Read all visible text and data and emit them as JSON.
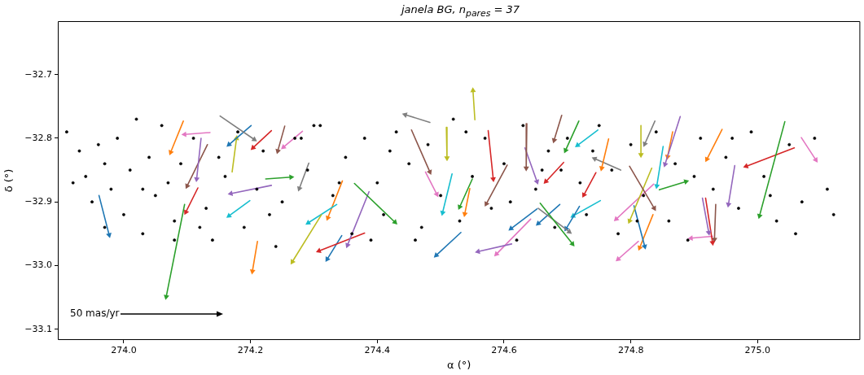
{
  "chart_data": {
    "type": "line",
    "title": "janela BG, n$_{pares}$ = 37",
    "xlabel": "α (°)",
    "ylabel": "δ (°)",
    "xlim": [
      273.896,
      275.162
    ],
    "ylim": [
      -33.117,
      -32.616
    ],
    "xticks": [
      {
        "value": 274,
        "label": "274.0"
      },
      {
        "value": 274.2,
        "label": "274.2"
      },
      {
        "value": 274.4,
        "label": "274.4"
      },
      {
        "value": 274.6,
        "label": "274.6"
      },
      {
        "value": 274.8,
        "label": "274.8"
      },
      {
        "value": 275,
        "label": "275.0"
      }
    ],
    "yticks": [
      {
        "value": -32.7,
        "label": "−32.7"
      },
      {
        "value": -32.8,
        "label": "−32.8"
      },
      {
        "value": -32.9,
        "label": "−32.9"
      },
      {
        "value": -33.0,
        "label": "−33.0"
      },
      {
        "value": -33.1,
        "label": "−33.1"
      }
    ],
    "grid": false,
    "legend": false,
    "annotations": [
      "50 mas/yr"
    ],
    "series": [
      {
        "type": "scatter",
        "marker": "circle",
        "color": "#000000",
        "x": [
          273.91,
          273.93,
          273.94,
          273.95,
          273.96,
          273.97,
          273.98,
          273.99,
          274.0,
          274.01,
          274.02,
          274.03,
          274.04,
          274.05,
          274.06,
          274.07,
          274.08,
          274.09,
          274.11,
          274.13,
          274.14,
          274.16,
          274.18,
          274.19,
          274.21,
          274.22,
          274.24,
          274.25,
          274.27,
          274.29,
          274.3,
          274.31,
          274.33,
          274.35,
          274.36,
          274.38,
          274.4,
          274.41,
          274.43,
          274.45,
          274.46,
          274.48,
          274.5,
          274.52,
          274.53,
          274.55,
          274.57,
          274.58,
          274.6,
          274.62,
          274.63,
          274.65,
          274.67,
          274.68,
          274.7,
          274.72,
          274.73,
          274.75,
          274.77,
          274.78,
          274.8,
          274.82,
          274.84,
          274.86,
          274.87,
          274.89,
          274.91,
          274.93,
          274.95,
          274.97,
          274.99,
          275.01,
          275.03,
          275.05,
          275.07,
          275.09,
          275.11,
          275.12,
          273.92,
          273.97,
          274.03,
          274.08,
          274.15,
          274.23,
          274.28,
          274.34,
          274.42,
          274.47,
          274.54,
          274.61,
          274.66,
          274.74,
          274.81,
          274.9,
          274.96,
          275.02,
          275.06,
          274.12,
          274.39,
          274.69
        ],
        "values": [
          -32.79,
          -32.82,
          -32.86,
          -32.9,
          -32.81,
          -32.94,
          -32.88,
          -32.8,
          -32.92,
          -32.85,
          -32.77,
          -32.95,
          -32.83,
          -32.89,
          -32.78,
          -32.87,
          -32.93,
          -32.84,
          -32.8,
          -32.91,
          -32.96,
          -32.86,
          -32.79,
          -32.94,
          -32.88,
          -32.82,
          -32.97,
          -32.9,
          -32.8,
          -32.85,
          -32.78,
          -32.78,
          -32.89,
          -32.83,
          -32.95,
          -32.8,
          -32.87,
          -32.92,
          -32.79,
          -32.84,
          -32.96,
          -32.81,
          -32.89,
          -32.77,
          -32.93,
          -32.86,
          -32.8,
          -32.91,
          -32.84,
          -32.96,
          -32.78,
          -32.88,
          -32.82,
          -32.94,
          -32.8,
          -32.87,
          -32.92,
          -32.78,
          -32.85,
          -32.95,
          -32.81,
          -32.89,
          -32.79,
          -32.93,
          -32.84,
          -32.96,
          -32.8,
          -32.88,
          -32.83,
          -32.91,
          -32.79,
          -32.86,
          -32.93,
          -32.81,
          -32.9,
          -32.8,
          -32.88,
          -32.92,
          -32.87,
          -32.84,
          -32.88,
          -32.96,
          -32.83,
          -32.92,
          -32.8,
          -32.87,
          -32.82,
          -32.94,
          -32.79,
          -32.9,
          -32.85,
          -32.82,
          -32.93,
          -32.86,
          -32.8,
          -32.89,
          -32.95,
          -32.94,
          -32.96,
          -32.85
        ]
      },
      {
        "marker": "triangle",
        "color": "#1f77b4",
        "x": [
          273.961,
          273.977
        ],
        "values": [
          -32.89,
          -32.952
        ]
      },
      {
        "type": "line",
        "marker": "triangle",
        "color": "#ff7f0e",
        "x": [
          274.094,
          274.074
        ],
        "values": [
          -32.773,
          -32.822
        ]
      },
      {
        "type": "line",
        "marker": "triangle",
        "color": "#e377c2",
        "x": [
          274.136,
          274.096
        ],
        "values": [
          -32.791,
          -32.794
        ]
      },
      {
        "type": "line",
        "marker": "triangle",
        "color": "#9467bd",
        "x": [
          274.122,
          274.115
        ],
        "values": [
          -32.8,
          -32.864
        ]
      },
      {
        "type": "line",
        "marker": "triangle",
        "color": "#8c564b",
        "x": [
          274.132,
          274.1
        ],
        "values": [
          -32.81,
          -32.875
        ]
      },
      {
        "type": "line",
        "marker": "triangle",
        "color": "#7f7f7f",
        "x": [
          274.152,
          274.206
        ],
        "values": [
          -32.765,
          -32.802
        ]
      },
      {
        "type": "line",
        "marker": "triangle",
        "color": "#1f77b4",
        "x": [
          274.201,
          274.166
        ],
        "values": [
          -32.78,
          -32.81
        ]
      },
      {
        "type": "line",
        "marker": "triangle",
        "color": "#bcbd22",
        "x": [
          274.171,
          274.178
        ],
        "values": [
          -32.853,
          -32.8
        ]
      },
      {
        "type": "line",
        "marker": "triangle",
        "color": "#d62728",
        "x": [
          274.233,
          274.204
        ],
        "values": [
          -32.788,
          -32.815
        ]
      },
      {
        "type": "line",
        "marker": "triangle",
        "color": "#8c564b",
        "x": [
          274.254,
          274.243
        ],
        "values": [
          -32.781,
          -32.82
        ]
      },
      {
        "type": "line",
        "marker": "triangle",
        "color": "#e377c2",
        "x": [
          274.282,
          274.252
        ],
        "values": [
          -32.789,
          -32.814
        ]
      },
      {
        "type": "line",
        "marker": "triangle",
        "color": "#7f7f7f",
        "x": [
          274.292,
          274.277
        ],
        "values": [
          -32.839,
          -32.879
        ]
      },
      {
        "type": "line",
        "marker": "triangle",
        "color": "#2ca02c",
        "x": [
          274.224,
          274.264
        ],
        "values": [
          -32.864,
          -32.861
        ]
      },
      {
        "type": "line",
        "marker": "triangle",
        "color": "#9467bd",
        "x": [
          274.233,
          274.169
        ],
        "values": [
          -32.874,
          -32.887
        ]
      },
      {
        "type": "line",
        "marker": "triangle",
        "color": "#d62728",
        "x": [
          274.117,
          274.098
        ],
        "values": [
          -32.878,
          -32.916
        ]
      },
      {
        "type": "line",
        "marker": "triangle",
        "color": "#2ca02c",
        "x": [
          274.096,
          274.067
        ],
        "values": [
          -32.904,
          -33.049
        ]
      },
      {
        "type": "line",
        "marker": "triangle",
        "color": "#17becf",
        "x": [
          274.199,
          274.166
        ],
        "values": [
          -32.898,
          -32.922
        ]
      },
      {
        "type": "line",
        "marker": "triangle",
        "color": "#ff7f0e",
        "x": [
          274.211,
          274.203
        ],
        "values": [
          -32.962,
          -33.009
        ]
      },
      {
        "type": "line",
        "marker": "triangle",
        "color": "#bcbd22",
        "x": [
          274.312,
          274.266
        ],
        "values": [
          -32.92,
          -32.994
        ]
      },
      {
        "type": "line",
        "marker": "triangle",
        "color": "#17becf",
        "x": [
          274.336,
          274.291
        ],
        "values": [
          -32.904,
          -32.933
        ]
      },
      {
        "type": "line",
        "marker": "triangle",
        "color": "#ff7f0e",
        "x": [
          274.345,
          274.322
        ],
        "values": [
          -32.867,
          -32.925
        ]
      },
      {
        "type": "line",
        "marker": "triangle",
        "color": "#2ca02c",
        "x": [
          274.364,
          274.428
        ],
        "values": [
          -32.871,
          -32.932
        ]
      },
      {
        "type": "line",
        "marker": "triangle",
        "color": "#9467bd",
        "x": [
          274.387,
          274.353
        ],
        "values": [
          -32.884,
          -32.968
        ]
      },
      {
        "type": "line",
        "marker": "triangle",
        "color": "#d62728",
        "x": [
          274.38,
          274.308
        ],
        "values": [
          -32.949,
          -32.977
        ]
      },
      {
        "type": "line",
        "marker": "triangle",
        "color": "#1f77b4",
        "x": [
          274.344,
          274.321
        ],
        "values": [
          -32.953,
          -32.99
        ]
      },
      {
        "type": "line",
        "marker": "triangle",
        "color": "#7f7f7f",
        "x": [
          274.483,
          274.444
        ],
        "values": [
          -32.775,
          -32.763
        ]
      },
      {
        "type": "line",
        "marker": "triangle",
        "color": "#8c564b",
        "x": [
          274.454,
          274.483
        ],
        "values": [
          -32.787,
          -32.853
        ]
      },
      {
        "type": "line",
        "marker": "triangle",
        "color": "#bcbd22",
        "x": [
          274.509,
          274.51
        ],
        "values": [
          -32.783,
          -32.831
        ]
      },
      {
        "type": "line",
        "marker": "triangle",
        "color": "#bcbd22",
        "x": [
          274.554,
          274.551
        ],
        "values": [
          -32.771,
          -32.725
        ]
      },
      {
        "type": "line",
        "marker": "triangle",
        "color": "#e377c2",
        "x": [
          274.476,
          274.494
        ],
        "values": [
          -32.853,
          -32.888
        ]
      },
      {
        "type": "line",
        "marker": "triangle",
        "color": "#17becf",
        "x": [
          274.518,
          274.503
        ],
        "values": [
          -32.856,
          -32.917
        ]
      },
      {
        "type": "line",
        "marker": "triangle",
        "color": "#2ca02c",
        "x": [
          274.55,
          274.53
        ],
        "values": [
          -32.864,
          -32.908
        ]
      },
      {
        "type": "line",
        "marker": "triangle",
        "color": "#ff7f0e",
        "x": [
          274.546,
          274.538
        ],
        "values": [
          -32.879,
          -32.919
        ]
      },
      {
        "type": "line",
        "marker": "triangle",
        "color": "#1f77b4",
        "x": [
          274.532,
          274.493
        ],
        "values": [
          -32.948,
          -32.984
        ]
      },
      {
        "type": "line",
        "marker": "triangle",
        "color": "#d62728",
        "x": [
          274.575,
          274.583
        ],
        "values": [
          -32.788,
          -32.864
        ]
      },
      {
        "type": "line",
        "marker": "triangle",
        "color": "#8c564b",
        "x": [
          274.605,
          274.572
        ],
        "values": [
          -32.842,
          -32.903
        ]
      },
      {
        "type": "line",
        "marker": "triangle",
        "color": "#9467bd",
        "x": [
          274.612,
          274.559
        ],
        "values": [
          -32.966,
          -32.978
        ]
      },
      {
        "type": "line",
        "marker": "triangle",
        "color": "#e377c2",
        "x": [
          274.642,
          274.588
        ],
        "values": [
          -32.927,
          -32.982
        ]
      },
      {
        "type": "line",
        "marker": "triangle",
        "color": "#8c564b",
        "x": [
          274.636,
          274.635
        ],
        "values": [
          -32.777,
          -32.847
        ]
      },
      {
        "type": "line",
        "marker": "triangle",
        "color": "#9467bd",
        "x": [
          274.633,
          274.652
        ],
        "values": [
          -32.815,
          -32.868
        ]
      },
      {
        "type": "line",
        "marker": "triangle",
        "color": "#1f77b4",
        "x": [
          274.652,
          274.611
        ],
        "values": [
          -32.911,
          -32.942
        ]
      },
      {
        "type": "line",
        "marker": "triangle",
        "color": "#8c564b",
        "x": [
          274.691,
          274.679
        ],
        "values": [
          -32.764,
          -32.803
        ]
      },
      {
        "type": "line",
        "marker": "triangle",
        "color": "#2ca02c",
        "x": [
          274.718,
          274.697
        ],
        "values": [
          -32.773,
          -32.819
        ]
      },
      {
        "type": "line",
        "marker": "triangle",
        "color": "#17becf",
        "x": [
          274.748,
          274.716
        ],
        "values": [
          -32.787,
          -32.811
        ]
      },
      {
        "type": "line",
        "marker": "triangle",
        "color": "#d62728",
        "x": [
          274.694,
          274.666
        ],
        "values": [
          -32.838,
          -32.868
        ]
      },
      {
        "type": "line",
        "marker": "triangle",
        "color": "#2ca02c",
        "x": [
          274.657,
          274.708
        ],
        "values": [
          -32.902,
          -32.966
        ]
      },
      {
        "type": "line",
        "marker": "triangle",
        "color": "#7f7f7f",
        "x": [
          274.654,
          274.703
        ],
        "values": [
          -32.91,
          -32.947
        ]
      },
      {
        "type": "line",
        "marker": "triangle",
        "color": "#1f77b4",
        "x": [
          274.688,
          274.654
        ],
        "values": [
          -32.904,
          -32.934
        ]
      },
      {
        "type": "line",
        "marker": "triangle",
        "color": "#1f77b4",
        "x": [
          274.719,
          274.698
        ],
        "values": [
          -32.907,
          -32.942
        ]
      },
      {
        "type": "line",
        "marker": "triangle",
        "color": "#d62728",
        "x": [
          274.745,
          274.726
        ],
        "values": [
          -32.854,
          -32.889
        ]
      },
      {
        "type": "line",
        "marker": "triangle",
        "color": "#17becf",
        "x": [
          274.752,
          274.709
        ],
        "values": [
          -32.898,
          -32.922
        ]
      },
      {
        "type": "line",
        "marker": "triangle",
        "color": "#ff7f0e",
        "x": [
          274.765,
          274.754
        ],
        "values": [
          -32.801,
          -32.847
        ]
      },
      {
        "type": "line",
        "marker": "triangle",
        "color": "#7f7f7f",
        "x": [
          274.784,
          274.743
        ],
        "values": [
          -32.85,
          -32.832
        ]
      },
      {
        "type": "line",
        "marker": "triangle",
        "color": "#bcbd22",
        "x": [
          274.816,
          274.816
        ],
        "values": [
          -32.78,
          -32.826
        ]
      },
      {
        "type": "line",
        "marker": "triangle",
        "color": "#7f7f7f",
        "x": [
          274.838,
          274.822
        ],
        "values": [
          -32.773,
          -32.809
        ]
      },
      {
        "type": "line",
        "marker": "triangle",
        "color": "#9467bd",
        "x": [
          274.878,
          274.854
        ],
        "values": [
          -32.766,
          -32.841
        ]
      },
      {
        "type": "line",
        "marker": "triangle",
        "color": "#ff7f0e",
        "x": [
          274.866,
          274.858
        ],
        "values": [
          -32.79,
          -32.829
        ]
      },
      {
        "type": "line",
        "marker": "triangle",
        "color": "#17becf",
        "x": [
          274.851,
          274.841
        ],
        "values": [
          -32.813,
          -32.875
        ]
      },
      {
        "type": "line",
        "marker": "triangle",
        "color": "#8c564b",
        "x": [
          274.798,
          274.837
        ],
        "values": [
          -32.844,
          -32.91
        ]
      },
      {
        "type": "line",
        "marker": "triangle",
        "color": "#bcbd22",
        "x": [
          274.833,
          274.798
        ],
        "values": [
          -32.847,
          -32.93
        ]
      },
      {
        "type": "line",
        "marker": "triangle",
        "color": "#e377c2",
        "x": [
          274.836,
          274.777
        ],
        "values": [
          -32.872,
          -32.927
        ]
      },
      {
        "type": "line",
        "marker": "triangle",
        "color": "#2ca02c",
        "x": [
          274.845,
          274.887
        ],
        "values": [
          -32.881,
          -32.868
        ]
      },
      {
        "type": "line",
        "marker": "triangle",
        "color": "#1f77b4",
        "x": [
          274.805,
          274.822
        ],
        "values": [
          -32.906,
          -32.97
        ]
      },
      {
        "type": "line",
        "marker": "triangle",
        "color": "#ff7f0e",
        "x": [
          274.835,
          274.814
        ],
        "values": [
          -32.92,
          -32.972
        ]
      },
      {
        "type": "line",
        "marker": "triangle",
        "color": "#e377c2",
        "x": [
          274.812,
          274.78
        ],
        "values": [
          -32.962,
          -32.99
        ]
      },
      {
        "type": "line",
        "marker": "triangle",
        "color": "#ff7f0e",
        "x": [
          274.944,
          274.92
        ],
        "values": [
          -32.786,
          -32.833
        ]
      },
      {
        "type": "line",
        "marker": "triangle",
        "color": "#9467bd",
        "x": [
          274.964,
          274.954
        ],
        "values": [
          -32.843,
          -32.904
        ]
      },
      {
        "type": "line",
        "marker": "triangle",
        "color": "#9467bd",
        "x": [
          274.913,
          274.923
        ],
        "values": [
          -32.894,
          -32.948
        ]
      },
      {
        "type": "line",
        "marker": "triangle",
        "color": "#d62728",
        "x": [
          274.918,
          274.929
        ],
        "values": [
          -32.894,
          -32.964
        ]
      },
      {
        "type": "line",
        "marker": "triangle",
        "color": "#8c564b",
        "x": [
          274.934,
          274.932
        ],
        "values": [
          -32.904,
          -32.959
        ]
      },
      {
        "type": "line",
        "marker": "triangle",
        "color": "#e377c2",
        "x": [
          274.929,
          274.895
        ],
        "values": [
          -32.954,
          -32.957
        ]
      },
      {
        "type": "line",
        "marker": "triangle",
        "color": "#2ca02c",
        "x": [
          275.043,
          275.003
        ],
        "values": [
          -32.774,
          -32.922
        ]
      },
      {
        "type": "line",
        "marker": "triangle",
        "color": "#d62728",
        "x": [
          275.058,
          274.982
        ],
        "values": [
          -32.815,
          -32.844
        ]
      },
      {
        "type": "line",
        "marker": "triangle",
        "color": "#e377c2",
        "x": [
          275.069,
          275.092
        ],
        "values": [
          -32.799,
          -32.834
        ]
      }
    ]
  }
}
